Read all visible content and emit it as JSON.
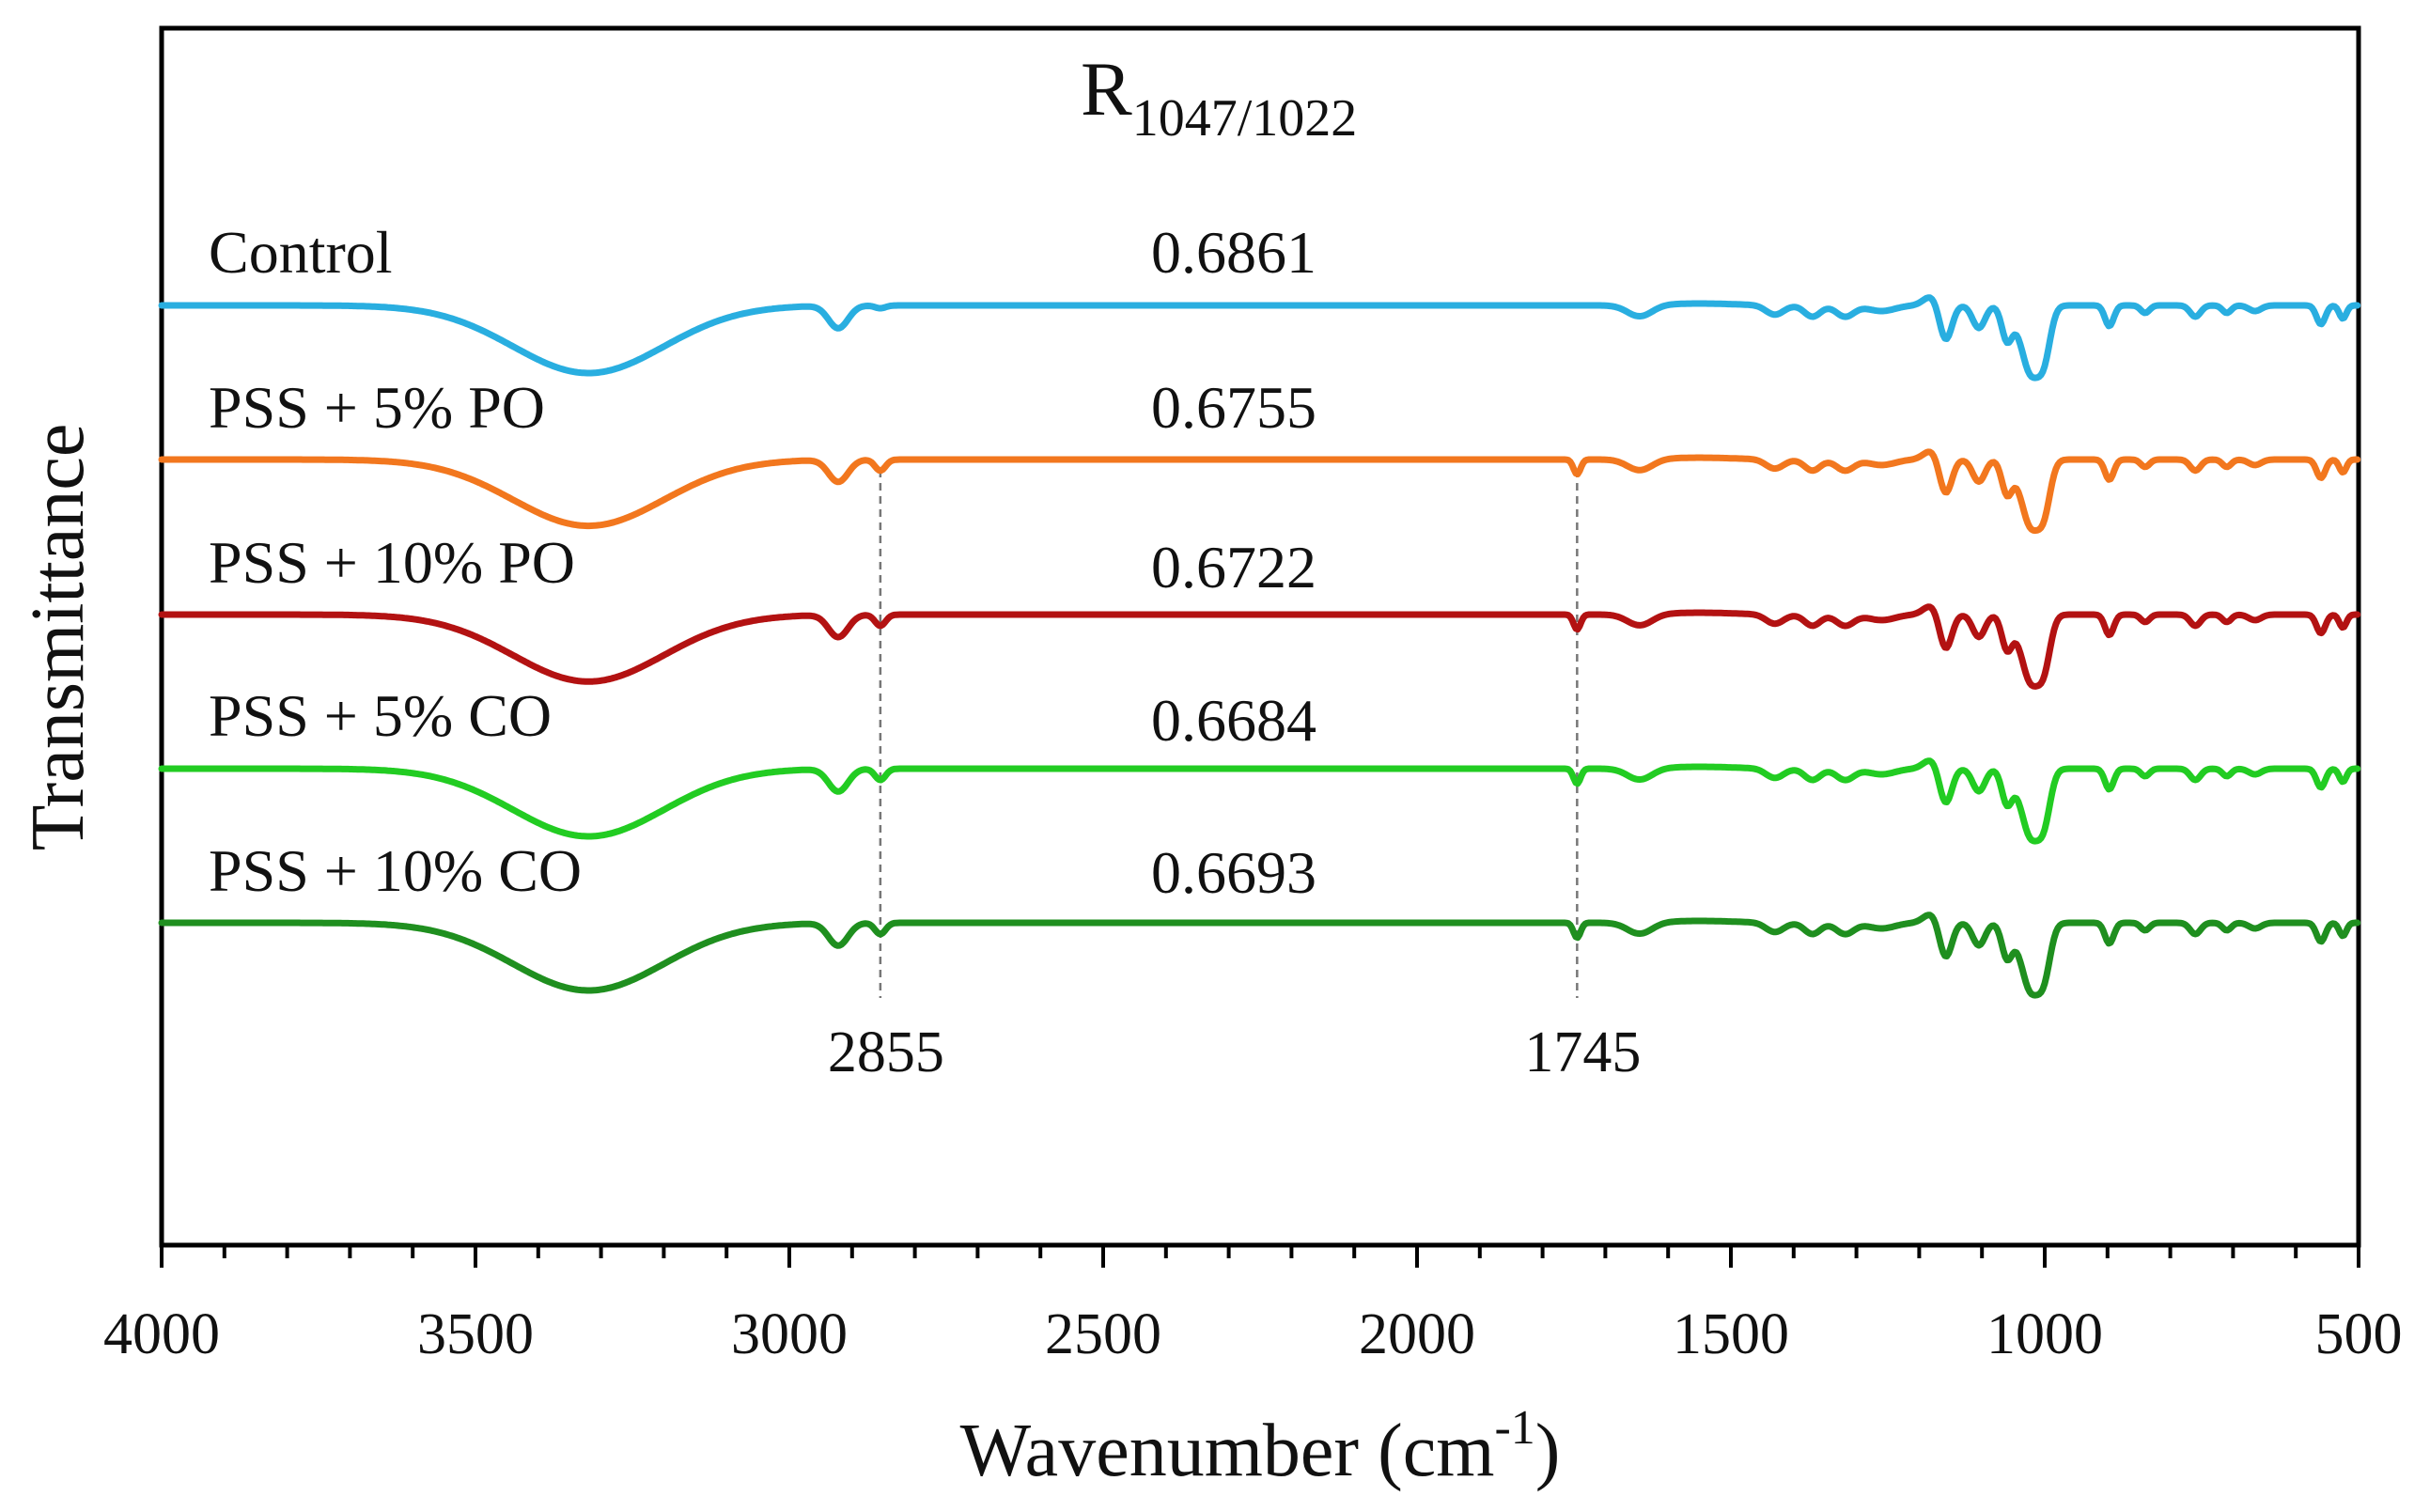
{
  "chart_data": {
    "type": "line",
    "title": "",
    "xlabel": "Wavenumber (cm-1)",
    "xlabel_parts": {
      "main": "Wavenumber (cm",
      "sup": "-1",
      "close": ")"
    },
    "ylabel": "Transmittance",
    "xlim": [
      4000,
      500
    ],
    "x_reversed": true,
    "x_ticks": [
      4000,
      3500,
      3000,
      2500,
      2000,
      1500,
      1000,
      500
    ],
    "grid": false,
    "ratio_header": {
      "symbol": "R",
      "subscript": "1047/1022"
    },
    "reference_lines": [
      {
        "x": 2855,
        "label": "2855"
      },
      {
        "x": 1745,
        "label": "1745"
      }
    ],
    "series": [
      {
        "name": "Control",
        "ratio": "0.6861",
        "color": "#29aee0",
        "has_ester": false
      },
      {
        "name": "PSS + 5% PO",
        "ratio": "0.6755",
        "color": "#f2771e",
        "has_ester": true
      },
      {
        "name": "PSS + 10% PO",
        "ratio": "0.6722",
        "color": "#b31212",
        "has_ester": true
      },
      {
        "name": "PSS + 5% CO",
        "ratio": "0.6684",
        "color": "#22cc22",
        "has_ester": true
      },
      {
        "name": "PSS + 10% CO",
        "ratio": "0.6693",
        "color": "#1f8f1f",
        "has_ester": true
      }
    ]
  }
}
